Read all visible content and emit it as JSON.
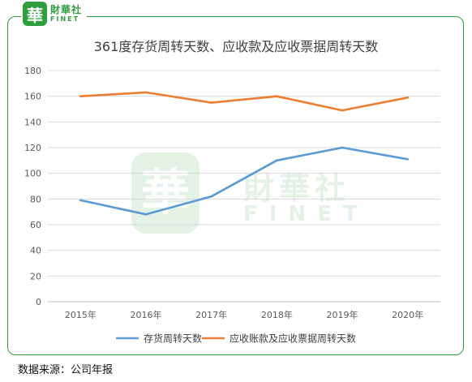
{
  "logo": {
    "mark": "華",
    "name_cn": "財華社",
    "name_en": "FINET"
  },
  "watermark": {
    "mark": "華",
    "name_cn": "財華社",
    "name_en": "FINET"
  },
  "source_note": "数据来源：公司年报",
  "chart_data": {
    "type": "line",
    "title": "361度存货周转天数、应收款及应收票据周转天数",
    "categories": [
      "2015年",
      "2016年",
      "2017年",
      "2018年",
      "2019年",
      "2020年"
    ],
    "series": [
      {
        "name": "存货周转天数",
        "color": "#5b9bd5",
        "values": [
          79,
          68,
          82,
          110,
          120,
          111
        ]
      },
      {
        "name": "应收账款及应收票据周转天数",
        "color": "#ed7d31",
        "values": [
          160,
          163,
          155,
          160,
          149,
          159
        ]
      }
    ],
    "ylim": [
      0,
      180
    ],
    "yticks": [
      0,
      20,
      40,
      60,
      80,
      100,
      120,
      140,
      160,
      180
    ],
    "grid": true,
    "legend": "bottom"
  }
}
